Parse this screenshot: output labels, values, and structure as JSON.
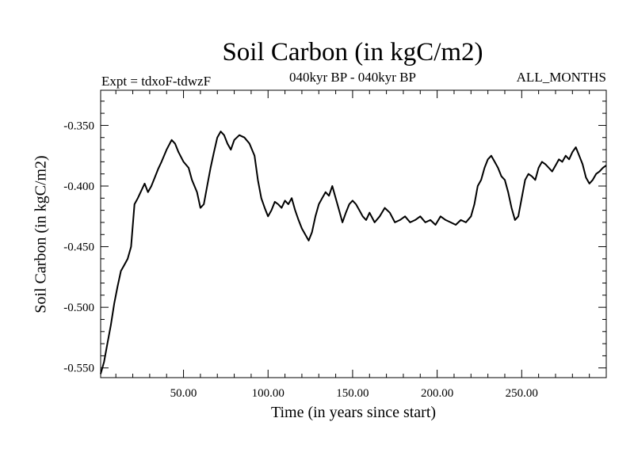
{
  "chart_data": {
    "type": "line",
    "title": "Soil Carbon (in kgC/m2)",
    "subtitle": "040kyr BP - 040kyr BP",
    "left_label": "Expt = tdxoF-tdwzF",
    "right_label": "ALL_MONTHS",
    "xlabel": "Time (in years since start)",
    "ylabel": "Soil Carbon (in kgC/m2)",
    "xlim": [
      1,
      300
    ],
    "ylim": [
      -0.558,
      -0.321
    ],
    "xticks": [
      50,
      100,
      150,
      200,
      250
    ],
    "xtick_labels": [
      "50.00",
      "100.00",
      "150.00",
      "200.00",
      "250.00"
    ],
    "yticks": [
      -0.35,
      -0.4,
      -0.45,
      -0.5,
      -0.55
    ],
    "ytick_labels": [
      "-0.350",
      "-0.400",
      "-0.450",
      "-0.500",
      "-0.550"
    ],
    "grid": false,
    "line_color": "#000000",
    "series": [
      {
        "x": [
          1,
          3,
          5,
          7,
          9,
          11,
          13,
          15,
          17,
          19,
          21,
          23,
          25,
          27,
          29,
          31,
          33,
          35,
          37,
          40,
          43,
          45,
          47,
          50,
          53,
          55,
          58,
          60,
          62,
          64,
          66,
          68,
          70,
          72,
          74,
          76,
          78,
          80,
          83,
          86,
          89,
          92,
          94,
          96,
          98,
          100,
          102,
          104,
          106,
          108,
          110,
          112,
          114,
          116,
          118,
          120,
          122,
          124,
          126,
          128,
          130,
          132,
          134,
          136,
          138,
          140,
          142,
          144,
          146,
          148,
          150,
          152,
          154,
          156,
          158,
          160,
          163,
          166,
          169,
          172,
          175,
          178,
          181,
          184,
          187,
          190,
          193,
          196,
          199,
          202,
          205,
          208,
          211,
          214,
          217,
          220,
          222,
          224,
          226,
          228,
          230,
          232,
          234,
          236,
          238,
          240,
          242,
          244,
          246,
          248,
          250,
          252,
          254,
          256,
          258,
          260,
          262,
          264,
          266,
          268,
          270,
          272,
          274,
          276,
          278,
          280,
          282,
          284,
          286,
          288,
          290,
          292,
          294,
          296,
          298,
          300
        ],
        "y": [
          -0.555,
          -0.545,
          -0.53,
          -0.515,
          -0.497,
          -0.483,
          -0.47,
          -0.465,
          -0.46,
          -0.45,
          -0.415,
          -0.41,
          -0.404,
          -0.398,
          -0.405,
          -0.4,
          -0.393,
          -0.386,
          -0.38,
          -0.37,
          -0.362,
          -0.365,
          -0.372,
          -0.38,
          -0.385,
          -0.395,
          -0.405,
          -0.418,
          -0.415,
          -0.4,
          -0.385,
          -0.372,
          -0.36,
          -0.355,
          -0.358,
          -0.365,
          -0.37,
          -0.362,
          -0.358,
          -0.36,
          -0.365,
          -0.375,
          -0.395,
          -0.41,
          -0.418,
          -0.425,
          -0.42,
          -0.413,
          -0.415,
          -0.418,
          -0.412,
          -0.415,
          -0.41,
          -0.42,
          -0.428,
          -0.435,
          -0.44,
          -0.445,
          -0.438,
          -0.425,
          -0.415,
          -0.41,
          -0.405,
          -0.408,
          -0.4,
          -0.41,
          -0.42,
          -0.43,
          -0.422,
          -0.415,
          -0.412,
          -0.415,
          -0.42,
          -0.425,
          -0.428,
          -0.422,
          -0.43,
          -0.425,
          -0.418,
          -0.422,
          -0.43,
          -0.428,
          -0.425,
          -0.43,
          -0.428,
          -0.425,
          -0.43,
          -0.428,
          -0.432,
          -0.425,
          -0.428,
          -0.43,
          -0.432,
          -0.428,
          -0.43,
          -0.425,
          -0.415,
          -0.4,
          -0.395,
          -0.385,
          -0.378,
          -0.375,
          -0.38,
          -0.385,
          -0.392,
          -0.395,
          -0.405,
          -0.418,
          -0.428,
          -0.425,
          -0.41,
          -0.395,
          -0.39,
          -0.392,
          -0.395,
          -0.385,
          -0.38,
          -0.382,
          -0.385,
          -0.388,
          -0.383,
          -0.378,
          -0.38,
          -0.375,
          -0.378,
          -0.372,
          -0.368,
          -0.375,
          -0.382,
          -0.393,
          -0.398,
          -0.395,
          -0.39,
          -0.388,
          -0.385,
          -0.383
        ]
      }
    ]
  }
}
